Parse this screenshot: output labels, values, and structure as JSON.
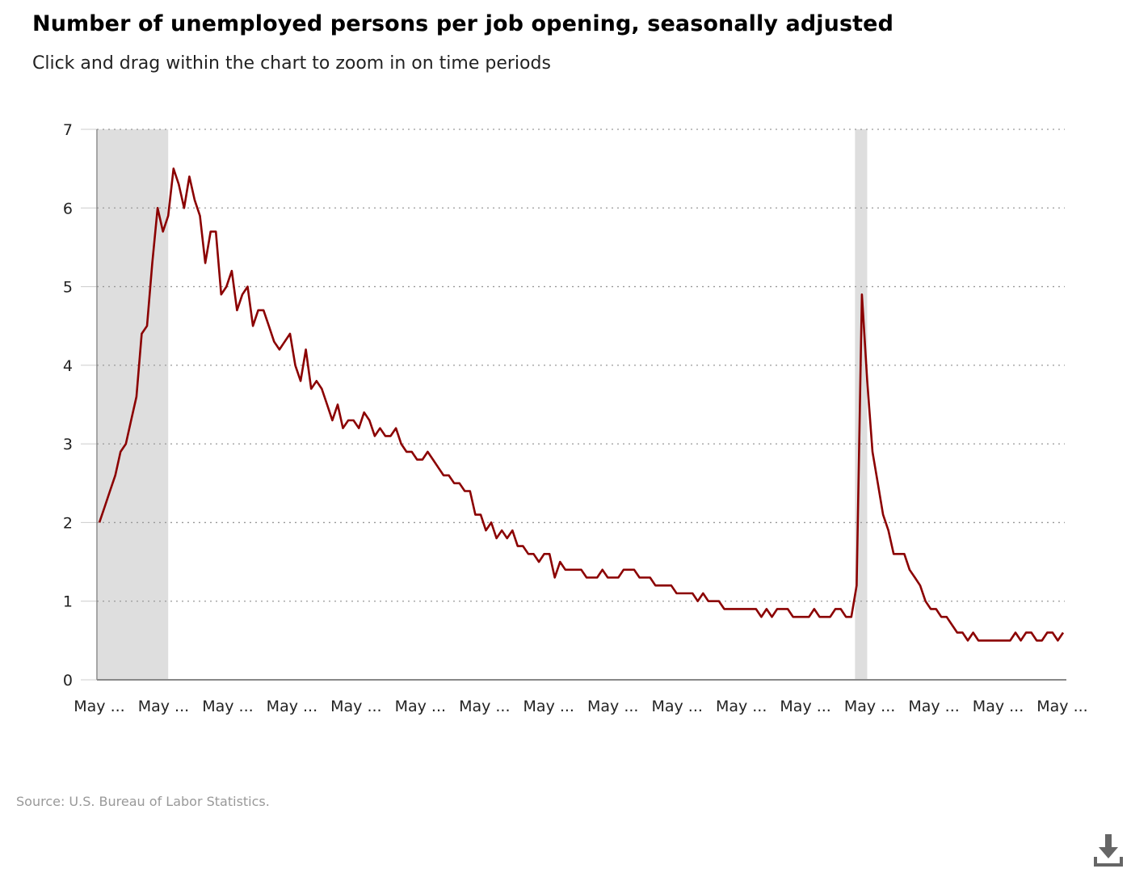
{
  "header": {
    "title": "Number of unemployed persons per job opening, seasonally adjusted",
    "subtitle": "Click and drag within the chart to zoom in on time periods"
  },
  "footer": {
    "source": "Source: U.S. Bureau of Labor Statistics."
  },
  "download": {
    "icon": "download-icon"
  },
  "colors": {
    "line": "#8b0000",
    "recession": "#dedede",
    "grid": "#999999",
    "axis": "#888888"
  },
  "chart_data": {
    "type": "line",
    "title": "Number of unemployed persons per job opening, seasonally adjusted",
    "xlabel": "",
    "ylabel": "",
    "ylim": [
      0,
      7
    ],
    "yticks": [
      0,
      1,
      2,
      3,
      4,
      5,
      6,
      7
    ],
    "xtick_labels": [
      "May ...",
      "May ...",
      "May ...",
      "May ...",
      "May ...",
      "May ...",
      "May ...",
      "May ...",
      "May ...",
      "May ...",
      "May ...",
      "May ...",
      "May ...",
      "May ...",
      "May ...",
      "May ..."
    ],
    "grid": true,
    "legend": "none",
    "recession_bands_month_index": [
      [
        0,
        13
      ],
      [
        143,
        145
      ]
    ],
    "series": [
      {
        "values": [
          2.0,
          2.2,
          2.4,
          2.6,
          2.9,
          3.0,
          3.3,
          3.6,
          4.4,
          4.5,
          5.3,
          6.0,
          5.7,
          5.9,
          6.5,
          6.3,
          6.0,
          6.4,
          6.1,
          5.9,
          5.3,
          5.7,
          5.7,
          4.9,
          5.0,
          5.2,
          4.7,
          4.9,
          5.0,
          4.5,
          4.7,
          4.7,
          4.5,
          4.3,
          4.2,
          4.3,
          4.4,
          4.0,
          3.8,
          4.2,
          3.7,
          3.8,
          3.7,
          3.5,
          3.3,
          3.5,
          3.2,
          3.3,
          3.3,
          3.2,
          3.4,
          3.3,
          3.1,
          3.2,
          3.1,
          3.1,
          3.2,
          3.0,
          2.9,
          2.9,
          2.8,
          2.8,
          2.9,
          2.8,
          2.7,
          2.6,
          2.6,
          2.5,
          2.5,
          2.4,
          2.4,
          2.1,
          2.1,
          1.9,
          2.0,
          1.8,
          1.9,
          1.8,
          1.9,
          1.7,
          1.7,
          1.6,
          1.6,
          1.5,
          1.6,
          1.6,
          1.3,
          1.5,
          1.4,
          1.4,
          1.4,
          1.4,
          1.3,
          1.3,
          1.3,
          1.4,
          1.3,
          1.3,
          1.3,
          1.4,
          1.4,
          1.4,
          1.3,
          1.3,
          1.3,
          1.2,
          1.2,
          1.2,
          1.2,
          1.1,
          1.1,
          1.1,
          1.1,
          1.0,
          1.1,
          1.0,
          1.0,
          1.0,
          0.9,
          0.9,
          0.9,
          0.9,
          0.9,
          0.9,
          0.9,
          0.8,
          0.9,
          0.8,
          0.9,
          0.9,
          0.9,
          0.8,
          0.8,
          0.8,
          0.8,
          0.9,
          0.8,
          0.8,
          0.8,
          0.9,
          0.9,
          0.8,
          0.8,
          1.2,
          4.9,
          3.8,
          2.9,
          2.5,
          2.1,
          1.9,
          1.6,
          1.6,
          1.6,
          1.4,
          1.3,
          1.2,
          1.0,
          0.9,
          0.9,
          0.8,
          0.8,
          0.7,
          0.6,
          0.6,
          0.5,
          0.6,
          0.5,
          0.5,
          0.5,
          0.5,
          0.5,
          0.5,
          0.5,
          0.6,
          0.5,
          0.6,
          0.6,
          0.5,
          0.5,
          0.6,
          0.6,
          0.5,
          0.6
        ]
      }
    ]
  }
}
